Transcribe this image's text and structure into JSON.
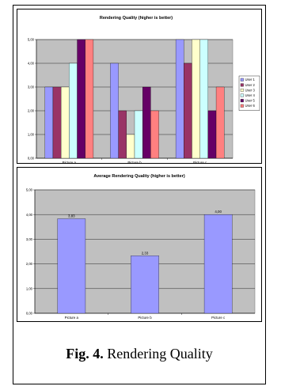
{
  "caption": {
    "label": "Fig. 4.",
    "text": " Rendering Quality"
  },
  "chart_data": [
    {
      "type": "bar",
      "title": "Rendering Quality (higher is better)",
      "categories": [
        "Picture a",
        "Picture b",
        "Picture c"
      ],
      "ylim": [
        0,
        5
      ],
      "yticks": [
        "0,00",
        "1,00",
        "2,00",
        "3,00",
        "4,00",
        "5,00"
      ],
      "grid": true,
      "legend": "right",
      "plot_bg": "#c0c0c0",
      "series": [
        {
          "name": "User 1",
          "color": "#9999ff",
          "values": [
            3,
            4,
            5
          ]
        },
        {
          "name": "User 2",
          "color": "#993366",
          "values": [
            3,
            2,
            4
          ]
        },
        {
          "name": "User 3",
          "color": "#ffffcc",
          "values": [
            3,
            1,
            5
          ]
        },
        {
          "name": "User 4",
          "color": "#ccffff",
          "values": [
            4,
            2,
            5
          ]
        },
        {
          "name": "User 5",
          "color": "#660066",
          "values": [
            5,
            3,
            2
          ]
        },
        {
          "name": "User 6",
          "color": "#ff8080",
          "values": [
            5,
            2,
            3
          ]
        }
      ]
    },
    {
      "type": "bar",
      "title": "Average Rendering Quality (higher is better)",
      "categories": [
        "Picture a",
        "Picture b",
        "Picture c"
      ],
      "ylim": [
        0,
        5
      ],
      "yticks": [
        "0,00",
        "1,00",
        "2,00",
        "3,00",
        "4,00",
        "5,00"
      ],
      "grid": true,
      "plot_bg": "#c0c0c0",
      "series": [
        {
          "color": "#9999ff",
          "values": [
            3.83,
            2.33,
            4.0
          ],
          "labels": [
            "3,83",
            "2,33",
            "4,00"
          ]
        }
      ]
    }
  ]
}
